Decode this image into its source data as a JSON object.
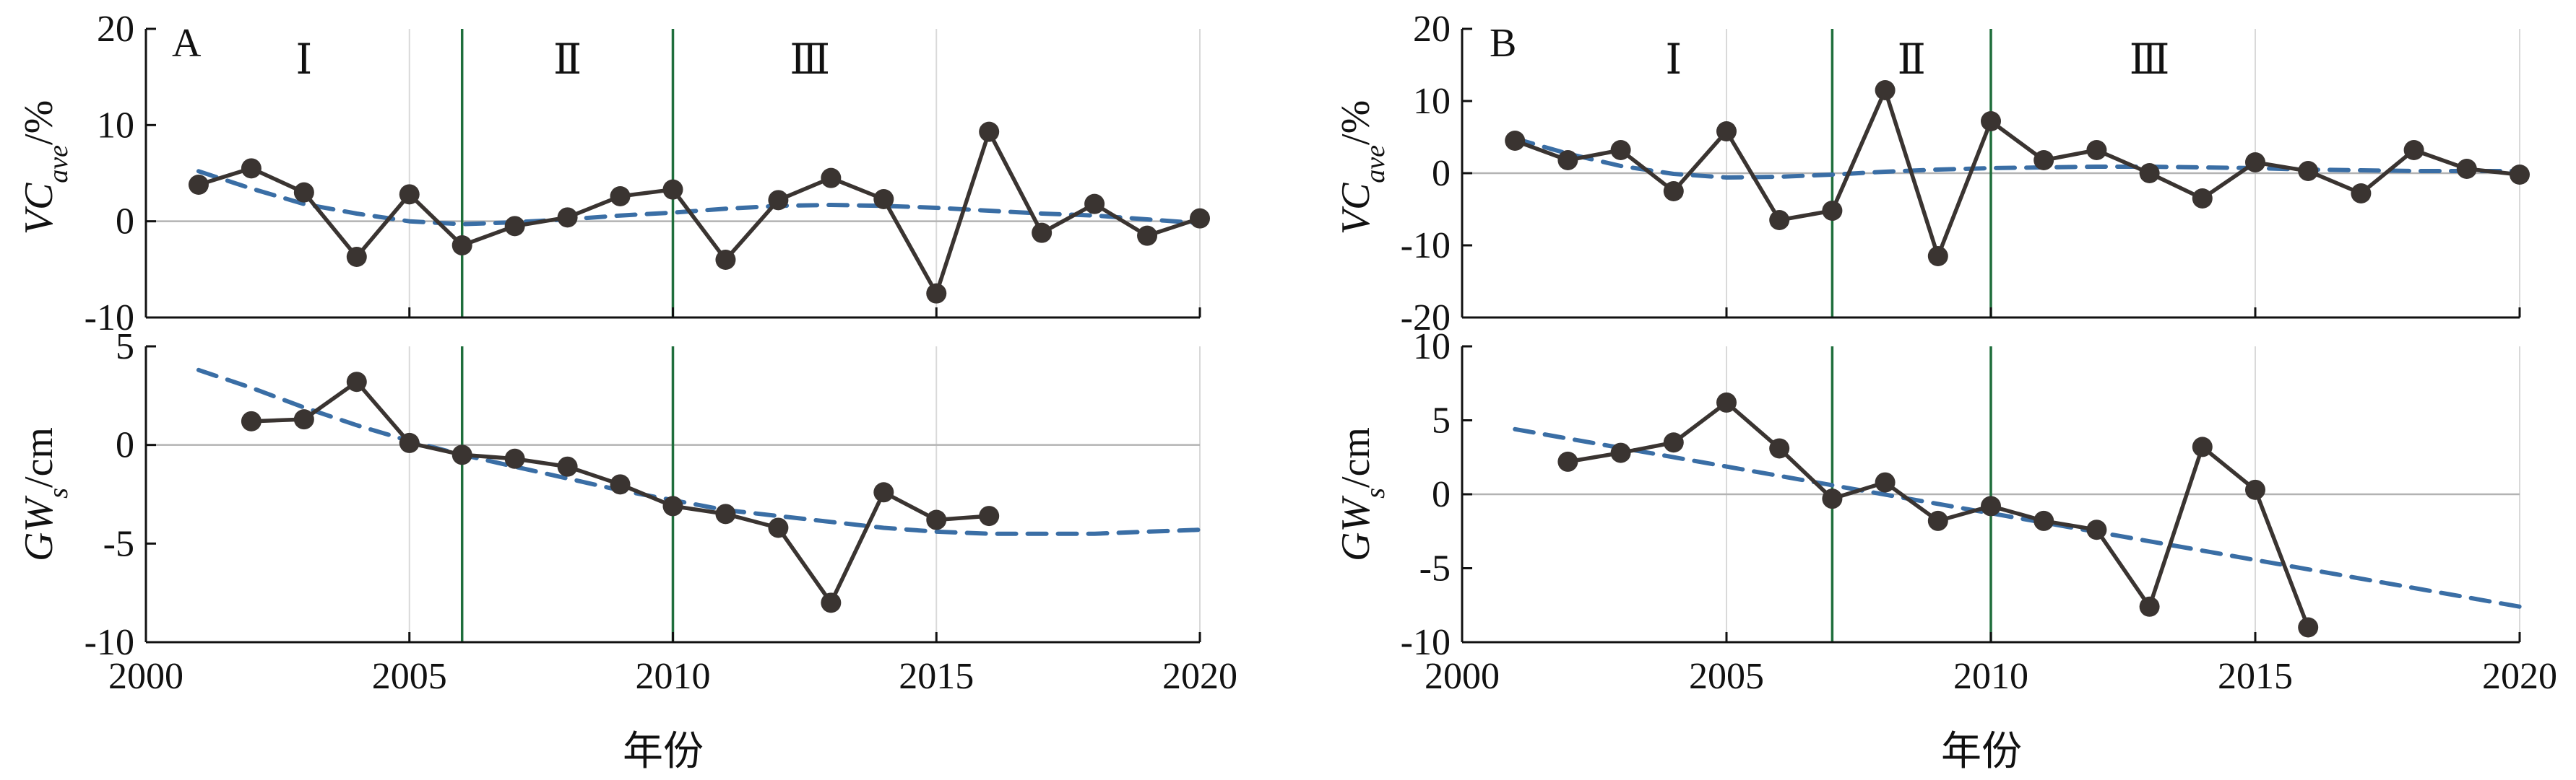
{
  "figure": {
    "x_title": "年份",
    "upper_ylabel": {
      "main": "VC",
      "sub": "ave",
      "unit": "/%"
    },
    "lower_ylabel": {
      "main": "GW",
      "sub": "s",
      "unit": "/cm"
    }
  },
  "colors": {
    "observed": "#3a3431",
    "trend": "#3a6ea5",
    "divider": "#1f6e3c",
    "grid": "#d9d9d9",
    "zero": "#b3b3b3",
    "axis": "#111111"
  },
  "chart_data": [
    {
      "type": "line",
      "panel": "A",
      "subplot": "upper",
      "xlim": [
        2000,
        2020
      ],
      "ylim": [
        -10,
        20
      ],
      "xticks": [
        2000,
        2005,
        2010,
        2015,
        2020
      ],
      "yticks": [
        -10,
        0,
        10,
        20
      ],
      "grid": true,
      "period_labels": [
        "Ⅰ",
        "Ⅱ",
        "Ⅲ"
      ],
      "dividers": [
        2006,
        2010
      ],
      "series": [
        {
          "style": "observed",
          "x": [
            2001,
            2002,
            2003,
            2004,
            2005,
            2006,
            2007,
            2008,
            2009,
            2010,
            2011,
            2012,
            2013,
            2014,
            2015,
            2016,
            2017,
            2018,
            2019,
            2020
          ],
          "y": [
            3.8,
            5.5,
            3.0,
            -3.7,
            2.8,
            -2.5,
            -0.5,
            0.4,
            2.6,
            3.3,
            -4.0,
            2.2,
            4.5,
            2.3,
            -7.5,
            9.3,
            -1.2,
            1.8,
            -1.5,
            0.3
          ]
        },
        {
          "style": "trend",
          "x": [
            2001,
            2002,
            2003,
            2004,
            2005,
            2006,
            2007,
            2008,
            2009,
            2010,
            2011,
            2012,
            2013,
            2014,
            2015,
            2016,
            2017,
            2018,
            2019,
            2020
          ],
          "y": [
            5.2,
            3.4,
            1.8,
            0.8,
            0.0,
            -0.3,
            -0.1,
            0.2,
            0.6,
            0.9,
            1.3,
            1.6,
            1.7,
            1.6,
            1.4,
            1.1,
            0.8,
            0.6,
            0.2,
            -0.2
          ]
        }
      ]
    },
    {
      "type": "line",
      "panel": "A",
      "subplot": "lower",
      "xlim": [
        2000,
        2020
      ],
      "ylim": [
        -10,
        5
      ],
      "xticks": [
        2000,
        2005,
        2010,
        2015,
        2020
      ],
      "yticks": [
        -10,
        -5,
        0,
        5
      ],
      "grid": true,
      "dividers": [
        2006,
        2010
      ],
      "series": [
        {
          "style": "observed",
          "x": [
            2002,
            2003,
            2004,
            2005,
            2006,
            2007,
            2008,
            2009,
            2010,
            2011,
            2012,
            2013,
            2014,
            2015,
            2016
          ],
          "y": [
            1.2,
            1.3,
            3.2,
            0.1,
            -0.5,
            -0.7,
            -1.1,
            -2.0,
            -3.1,
            -3.5,
            -4.2,
            -8.0,
            -2.4,
            -3.8,
            -3.6
          ]
        },
        {
          "style": "trend",
          "x": [
            2001,
            2002,
            2003,
            2004,
            2005,
            2006,
            2007,
            2008,
            2009,
            2010,
            2011,
            2012,
            2013,
            2014,
            2015,
            2016,
            2017,
            2018,
            2019,
            2020
          ],
          "y": [
            3.8,
            2.9,
            1.9,
            1.0,
            0.2,
            -0.5,
            -1.1,
            -1.7,
            -2.3,
            -2.8,
            -3.3,
            -3.6,
            -3.9,
            -4.2,
            -4.4,
            -4.5,
            -4.5,
            -4.5,
            -4.4,
            -4.3
          ]
        }
      ]
    },
    {
      "type": "line",
      "panel": "B",
      "subplot": "upper",
      "xlim": [
        2000,
        2020
      ],
      "ylim": [
        -20,
        20
      ],
      "xticks": [
        2000,
        2005,
        2010,
        2015,
        2020
      ],
      "yticks": [
        -20,
        -10,
        0,
        10,
        20
      ],
      "grid": true,
      "period_labels": [
        "Ⅰ",
        "Ⅱ",
        "Ⅲ"
      ],
      "dividers": [
        2007,
        2010
      ],
      "series": [
        {
          "style": "observed",
          "x": [
            2001,
            2002,
            2003,
            2004,
            2005,
            2006,
            2007,
            2008,
            2009,
            2010,
            2011,
            2012,
            2013,
            2014,
            2015,
            2016,
            2017,
            2018,
            2019,
            2020
          ],
          "y": [
            4.5,
            1.8,
            3.2,
            -2.5,
            5.8,
            -6.5,
            -5.2,
            11.5,
            -11.5,
            7.2,
            1.8,
            3.2,
            0.0,
            -3.5,
            1.5,
            0.3,
            -2.8,
            3.2,
            0.6,
            -0.2
          ]
        },
        {
          "style": "trend",
          "x": [
            2001,
            2002,
            2003,
            2004,
            2005,
            2006,
            2007,
            2008,
            2009,
            2010,
            2011,
            2012,
            2013,
            2014,
            2015,
            2016,
            2017,
            2018,
            2019,
            2020
          ],
          "y": [
            4.8,
            2.7,
            1.0,
            -0.1,
            -0.6,
            -0.5,
            -0.2,
            0.2,
            0.5,
            0.7,
            0.8,
            0.9,
            0.9,
            0.8,
            0.7,
            0.5,
            0.4,
            0.3,
            0.3,
            0.3
          ]
        }
      ]
    },
    {
      "type": "line",
      "panel": "B",
      "subplot": "lower",
      "xlim": [
        2000,
        2020
      ],
      "ylim": [
        -10,
        10
      ],
      "xticks": [
        2000,
        2005,
        2010,
        2015,
        2020
      ],
      "yticks": [
        -10,
        -5,
        0,
        5,
        10
      ],
      "grid": true,
      "dividers": [
        2007,
        2010
      ],
      "series": [
        {
          "style": "observed",
          "x": [
            2002,
            2003,
            2004,
            2005,
            2006,
            2007,
            2008,
            2009,
            2010,
            2011,
            2012,
            2013,
            2014,
            2015,
            2016
          ],
          "y": [
            2.2,
            2.8,
            3.5,
            6.2,
            3.1,
            -0.3,
            0.8,
            -1.8,
            -0.8,
            -1.8,
            -2.4,
            -7.6,
            3.2,
            0.3,
            -9.0
          ]
        },
        {
          "style": "trend",
          "x": [
            2001,
            2020
          ],
          "y": [
            4.4,
            -7.6
          ]
        }
      ]
    }
  ]
}
